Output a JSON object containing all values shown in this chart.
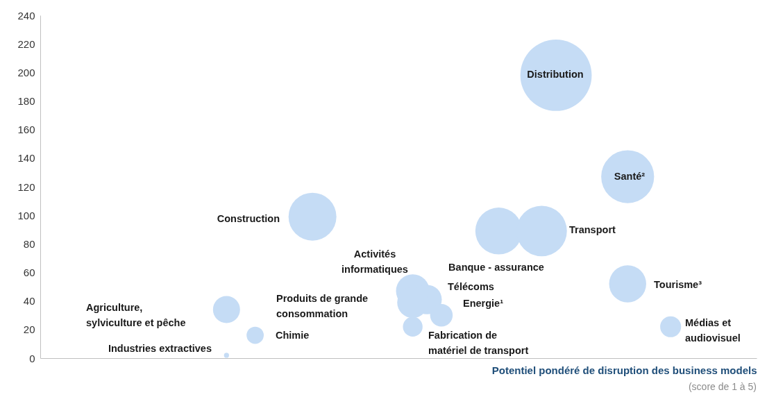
{
  "chart_data": {
    "type": "bubble",
    "xlabel": "Potentiel pondéré de disruption des business models",
    "categories": [
      null,
      null,
      null,
      null,
      null,
      null,
      null,
      null,
      null,
      null,
      null,
      null,
      null,
      null,
      null,
      null,
      null,
      null,
      null,
      null,
      null,
      null,
      null,
      null,
      null,
      null,
      null,
      null,
      null,
      null,
      null,
      null,
      null,
      null,
      null,
      null,
      null,
      null,
      null,
      null,
      null,
      null,
      null,
      null,
      null,
      null,
      null,
      null,
      null,
      null,
      null
    ],
    "ylim": [
      0,
      240
    ],
    "yticks": [
      0,
      20,
      40,
      60,
      80,
      100,
      120,
      140,
      160,
      180,
      200,
      220,
      240
    ],
    "tick_labels": "y",
    "grid": false,
    "legend": false,
    "series": [
      {
        "color": "#c5dcf5",
        "values": [
          null,
          null,
          null,
          null,
          null,
          null,
          null,
          null,
          null,
          null,
          null,
          null,
          null,
          34,
          null,
          16,
          null,
          null,
          null,
          99,
          null,
          null,
          null,
          null,
          null,
          null,
          47,
          41,
          30,
          null,
          null,
          null,
          89,
          null,
          null,
          89,
          198,
          null,
          null,
          null,
          null,
          127,
          null,
          null,
          22,
          null,
          null,
          null,
          null,
          null,
          null
        ],
        "sizes": [
          null,
          null,
          null,
          null,
          null,
          null,
          null,
          null,
          null,
          null,
          null,
          null,
          null,
          0.144,
          null,
          0.058,
          null,
          null,
          null,
          0.45,
          null,
          null,
          null,
          null,
          null,
          null,
          0.22,
          0.17,
          0.1,
          null,
          null,
          null,
          0.43,
          null,
          null,
          0.5,
          1,
          null,
          null,
          null,
          null,
          0.55,
          null,
          null,
          0.086,
          null,
          null,
          null,
          null,
          null,
          null
        ]
      },
      {
        "color": "#c5dcf5",
        "values": [
          null,
          null,
          null,
          null,
          null,
          null,
          null,
          null,
          null,
          null,
          null,
          null,
          null,
          2,
          null,
          null,
          null,
          null,
          null,
          null,
          null,
          null,
          null,
          null,
          null,
          null,
          39,
          null,
          null,
          null,
          null,
          null,
          null,
          null,
          null,
          null,
          null,
          null,
          null,
          null,
          null,
          52,
          null,
          null,
          null,
          null,
          null,
          null,
          null,
          null,
          null
        ],
        "sizes": [
          null,
          null,
          null,
          null,
          null,
          null,
          null,
          null,
          null,
          null,
          null,
          null,
          null,
          0.005,
          null,
          null,
          null,
          null,
          null,
          null,
          null,
          null,
          null,
          null,
          null,
          null,
          0.19,
          null,
          null,
          null,
          null,
          null,
          null,
          null,
          null,
          null,
          null,
          null,
          null,
          null,
          null,
          0.27,
          null,
          null,
          null,
          null,
          null,
          null,
          null,
          null,
          null
        ]
      },
      {
        "color": "#c5dcf5",
        "values": [
          null,
          null,
          null,
          null,
          null,
          null,
          null,
          null,
          null,
          null,
          null,
          null,
          null,
          null,
          null,
          null,
          null,
          null,
          null,
          null,
          null,
          null,
          null,
          null,
          null,
          null,
          22,
          null,
          null,
          null,
          null,
          null,
          null,
          null,
          null,
          null,
          null,
          null,
          null,
          null,
          null,
          null,
          null,
          null,
          null,
          null,
          null,
          null,
          null,
          null,
          null
        ],
        "sizes": [
          null,
          null,
          null,
          null,
          null,
          null,
          null,
          null,
          null,
          null,
          null,
          null,
          null,
          null,
          null,
          null,
          null,
          null,
          null,
          null,
          null,
          null,
          null,
          null,
          null,
          null,
          0.076,
          null,
          null,
          null,
          null,
          null,
          null,
          null,
          null,
          null,
          null,
          null,
          null,
          null,
          null,
          null,
          null,
          null,
          null,
          null,
          null,
          null,
          null,
          null,
          null
        ]
      }
    ],
    "annotations": [
      "Distribution",
      "Santé²",
      "Construction",
      "Transport",
      "Banque - assurance",
      "Activités\ninformatiques",
      "Télécoms",
      "Produits de grande\nconsommation",
      "Energie¹",
      "Fabrication de\nmatériel de transport",
      "Tourisme³",
      "Médias et\naudiovisuel",
      "Agriculture,\nsylviculture et pêche",
      "Chimie",
      "Industries extractives",
      "(score de 1 à 5)"
    ]
  }
}
